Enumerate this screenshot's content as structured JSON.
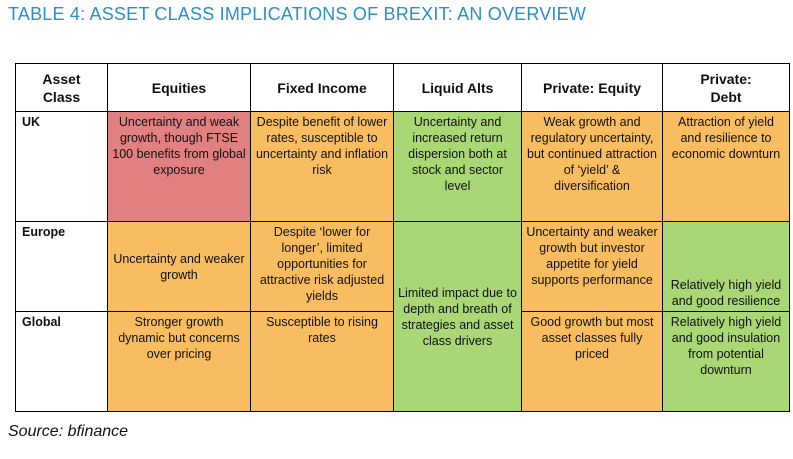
{
  "title": "TABLE 4: ASSET CLASS IMPLICATIONS OF BREXIT: AN OVERVIEW",
  "headers": [
    "Asset Class",
    "Equities",
    "Fixed Income",
    "Liquid Alts",
    "Private: Equity",
    "Private: Debt"
  ],
  "rows": [
    {
      "label": "UK",
      "equities": "Uncertainty and weak growth, though FTSE 100 benefits from global exposure",
      "fixed_income": "Despite benefit of lower rates, susceptible to uncertainty and inflation risk",
      "liquid_alts": "Uncertainty and increased return dispersion both at stock and sector level",
      "private_equity": "Weak growth and regulatory uncertainty, but continued attraction of ‘yield’ & diversification",
      "private_debt": "Attraction of yield and resilience to economic downturn"
    },
    {
      "label": "Europe",
      "equities": "Uncertainty and weaker growth",
      "fixed_income": "Despite ‘lower for longer’, limited opportunities for attractive risk adjusted yields",
      "liquid_alts_merged": "Limited impact due to depth and breath of strategies and asset class drivers",
      "private_equity": "Uncertainty and weaker growth but investor appetite for yield supports performance",
      "private_debt": "Relatively high yield and good resilience"
    },
    {
      "label": "Global",
      "equities": "Stronger growth dynamic but concerns over pricing",
      "fixed_income": "Susceptible to rising rates",
      "private_equity": "Good growth but most asset classes fully priced",
      "private_debt": "Relatively high yield and good insulation from potential downturn"
    }
  ],
  "colors": {
    "red": "#e08080",
    "orange": "#f7bd60",
    "green": "#a9d776",
    "title": "#2a8fc4"
  },
  "source": "Source: bfinance"
}
